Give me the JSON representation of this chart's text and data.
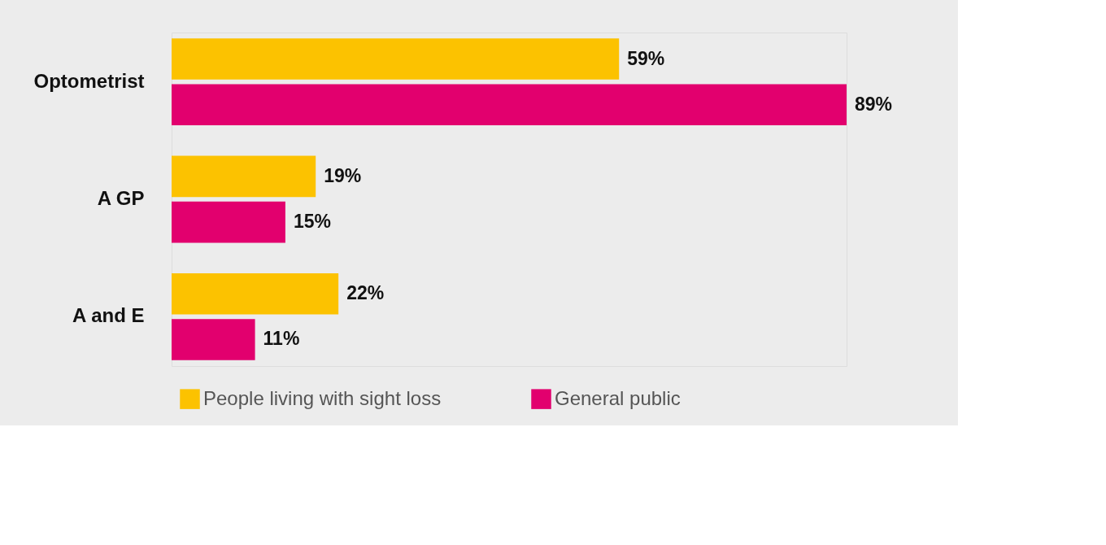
{
  "chart_data": {
    "type": "bar",
    "orientation": "horizontal",
    "categories": [
      "Optometrist",
      "A GP",
      "A and E"
    ],
    "series": [
      {
        "name": "People living with sight loss",
        "color": "#fcc200",
        "values": [
          59,
          19,
          22
        ],
        "value_labels": [
          "59%",
          "19%",
          "22%"
        ]
      },
      {
        "name": "General public",
        "color": "#e2006e",
        "values": [
          89,
          15,
          11
        ],
        "value_labels": [
          "89%",
          "15%",
          "11%"
        ]
      }
    ],
    "legend": "bottom"
  }
}
